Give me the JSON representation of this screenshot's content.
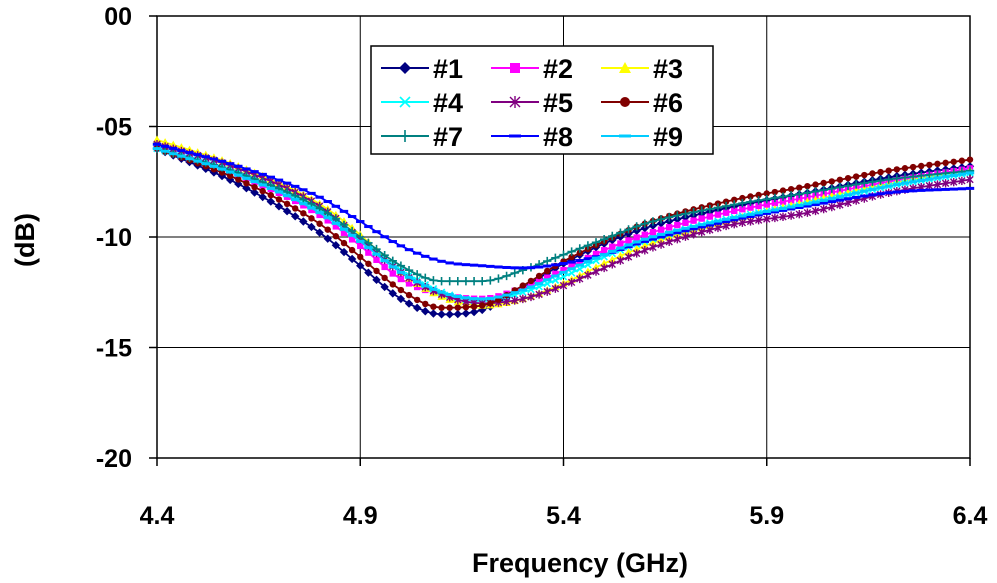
{
  "chart_data": {
    "type": "line",
    "title": "",
    "xlabel": "Frequency (GHz)",
    "ylabel": "(dB)",
    "xlim": [
      4.4,
      6.4
    ],
    "ylim": [
      -20,
      0
    ],
    "x_ticks": [
      4.4,
      4.9,
      5.4,
      5.9,
      6.4
    ],
    "x_tick_labels": [
      "4.4",
      "4.9",
      "5.4",
      "5.9",
      "6.4"
    ],
    "y_ticks": [
      0,
      -5,
      -10,
      -15,
      -20
    ],
    "y_tick_labels": [
      "00",
      "-05",
      "-10",
      "-15",
      "-20"
    ],
    "grid": true,
    "legend_position": "top-center",
    "x": [
      4.4,
      4.6,
      4.8,
      4.9,
      5.0,
      5.1,
      5.2,
      5.3,
      5.4,
      5.5,
      5.6,
      5.8,
      6.0,
      6.2,
      6.4
    ],
    "series": [
      {
        "name": "#1",
        "color": "#000080",
        "marker": "diamond",
        "values": [
          -6.0,
          -7.6,
          -9.8,
          -11.3,
          -12.8,
          -13.5,
          -13.3,
          -12.3,
          -11.2,
          -10.3,
          -9.6,
          -8.7,
          -8.0,
          -7.3,
          -6.8
        ]
      },
      {
        "name": "#2",
        "color": "#FF00FF",
        "marker": "square",
        "values": [
          -6.0,
          -7.2,
          -9.0,
          -10.4,
          -11.9,
          -12.6,
          -12.8,
          -12.3,
          -11.5,
          -10.6,
          -9.9,
          -8.9,
          -8.2,
          -7.5,
          -6.9
        ]
      },
      {
        "name": "#3",
        "color": "#FFFF00",
        "marker": "triangle",
        "values": [
          -5.6,
          -6.8,
          -8.5,
          -9.9,
          -11.6,
          -12.7,
          -13.1,
          -12.8,
          -12.1,
          -11.2,
          -10.4,
          -9.3,
          -8.4,
          -7.6,
          -7.0
        ]
      },
      {
        "name": "#4",
        "color": "#00FFFF",
        "marker": "x",
        "values": [
          -6.0,
          -7.1,
          -8.8,
          -10.1,
          -11.5,
          -12.5,
          -12.9,
          -12.5,
          -11.8,
          -10.9,
          -10.2,
          -9.2,
          -8.5,
          -7.7,
          -7.1
        ]
      },
      {
        "name": "#5",
        "color": "#800080",
        "marker": "star",
        "values": [
          -5.8,
          -6.9,
          -8.6,
          -10.1,
          -11.6,
          -12.6,
          -13.0,
          -12.8,
          -12.2,
          -11.4,
          -10.6,
          -9.5,
          -8.9,
          -8.0,
          -7.4
        ]
      },
      {
        "name": "#6",
        "color": "#800000",
        "marker": "circle",
        "values": [
          -6.0,
          -7.4,
          -9.4,
          -10.9,
          -12.4,
          -13.2,
          -13.1,
          -12.2,
          -11.1,
          -10.2,
          -9.4,
          -8.4,
          -7.7,
          -7.0,
          -6.5
        ]
      },
      {
        "name": "#7",
        "color": "#008080",
        "marker": "plus",
        "values": [
          -6.0,
          -7.1,
          -8.7,
          -10.0,
          -11.3,
          -12.0,
          -12.0,
          -11.5,
          -10.8,
          -10.1,
          -9.4,
          -8.6,
          -8.0,
          -7.4,
          -7.0
        ]
      },
      {
        "name": "#8",
        "color": "#0000FF",
        "marker": "dash",
        "values": [
          -5.8,
          -6.8,
          -8.2,
          -9.3,
          -10.4,
          -11.1,
          -11.3,
          -11.4,
          -11.2,
          -10.8,
          -10.2,
          -9.3,
          -8.6,
          -8.0,
          -7.8
        ]
      },
      {
        "name": "#9",
        "color": "#00CCFF",
        "marker": "dash",
        "values": [
          -6.0,
          -7.2,
          -8.9,
          -10.2,
          -11.6,
          -12.5,
          -12.8,
          -12.4,
          -11.6,
          -10.8,
          -10.1,
          -9.2,
          -8.5,
          -7.7,
          -7.1
        ]
      }
    ]
  }
}
